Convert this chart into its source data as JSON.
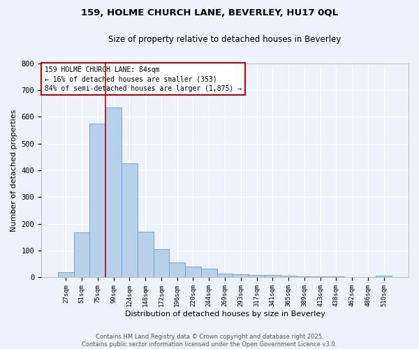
{
  "title1": "159, HOLME CHURCH LANE, BEVERLEY, HU17 0QL",
  "title2": "Size of property relative to detached houses in Beverley",
  "xlabel": "Distribution of detached houses by size in Beverley",
  "ylabel": "Number of detached properties",
  "categories": [
    "27sqm",
    "51sqm",
    "75sqm",
    "99sqm",
    "124sqm",
    "148sqm",
    "172sqm",
    "196sqm",
    "220sqm",
    "244sqm",
    "269sqm",
    "293sqm",
    "317sqm",
    "341sqm",
    "365sqm",
    "389sqm",
    "413sqm",
    "438sqm",
    "462sqm",
    "486sqm",
    "510sqm"
  ],
  "values": [
    20,
    168,
    575,
    635,
    425,
    170,
    105,
    57,
    40,
    32,
    15,
    12,
    10,
    8,
    7,
    5,
    4,
    3,
    2,
    2,
    6
  ],
  "bar_color": "#b8d0ea",
  "bar_edge_color": "#6aaad4",
  "background_color": "#eef2fb",
  "grid_color": "#ffffff",
  "red_line_x": 2.5,
  "annotation_text": "159 HOLME CHURCH LANE: 84sqm\n← 16% of detached houses are smaller (353)\n84% of semi-detached houses are larger (1,875) →",
  "annotation_box_color": "#ffffff",
  "annotation_box_edge": "#cc0000",
  "footer1": "Contains HM Land Registry data © Crown copyright and database right 2025.",
  "footer2": "Contains public sector information licensed under the Open Government Licence v3.0.",
  "ylim": [
    0,
    800
  ],
  "yticks": [
    0,
    100,
    200,
    300,
    400,
    500,
    600,
    700,
    800
  ]
}
